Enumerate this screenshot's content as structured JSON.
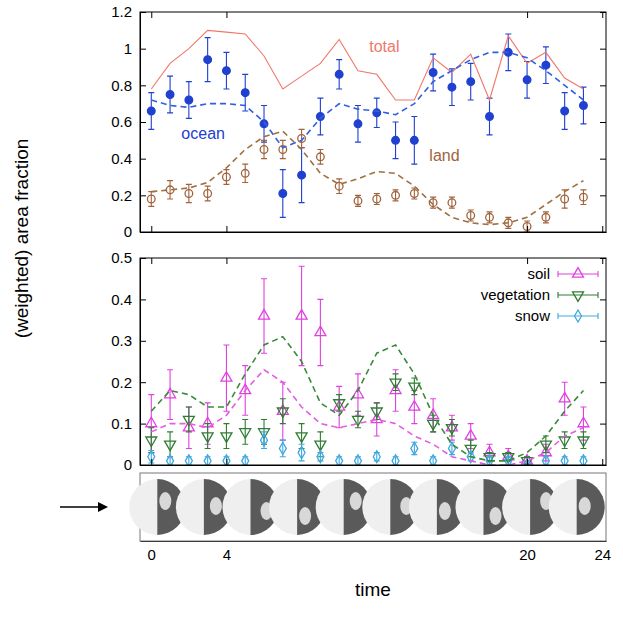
{
  "chart_data": [
    {
      "type": "scatter",
      "ylabel": "(weighted) area fraction",
      "x": [
        0,
        1,
        2,
        3,
        4,
        5,
        6,
        7,
        8,
        9,
        10,
        11,
        12,
        13,
        14,
        15,
        16,
        17,
        18,
        19,
        20,
        21,
        22,
        23
      ],
      "xlim": [
        -0.6,
        24.2
      ],
      "xticks": [
        0,
        4,
        20,
        24
      ],
      "ylim": [
        0,
        1.2
      ],
      "yticks": [
        0,
        0.2,
        0.4,
        0.6,
        0.8,
        1,
        1.2
      ],
      "tick_labels": "y",
      "grid": false,
      "series": [
        {
          "type": "scatter",
          "marker": "circle",
          "color": "#2040d0",
          "values": [
            0.66,
            0.75,
            0.72,
            0.94,
            0.88,
            0.76,
            0.59,
            0.21,
            0.31,
            0.63,
            0.86,
            0.59,
            0.65,
            0.5,
            0.5,
            0.87,
            0.79,
            0.82,
            0.63,
            0.98,
            0.83,
            0.91,
            0.66,
            0.69
          ],
          "errors": [
            0.1,
            0.1,
            0.1,
            0.12,
            0.1,
            0.1,
            0.1,
            0.13,
            0.15,
            0.1,
            0.08,
            0.1,
            0.08,
            0.1,
            0.13,
            0.1,
            0.1,
            0.1,
            0.1,
            0.1,
            0.1,
            0.1,
            0.1,
            0.1
          ]
        },
        {
          "type": "scatter",
          "marker": "open_circle",
          "color": "#a0633c",
          "values": [
            0.18,
            0.23,
            0.21,
            0.21,
            0.3,
            0.32,
            0.45,
            0.45,
            0.51,
            0.41,
            0.25,
            0.17,
            0.18,
            0.2,
            0.21,
            0.16,
            0.16,
            0.09,
            0.08,
            0.05,
            0.03,
            0.08,
            0.18,
            0.19
          ],
          "errors": [
            0.04,
            0.05,
            0.05,
            0.04,
            0.04,
            0.05,
            0.05,
            0.05,
            0.05,
            0.04,
            0.04,
            0.03,
            0.03,
            0.03,
            0.03,
            0.03,
            0.03,
            0.03,
            0.03,
            0.03,
            0.03,
            0.03,
            0.05,
            0.04
          ]
        },
        {
          "type": "line",
          "line_style": "solid",
          "color": "#f0786a",
          "values": [
            0.78,
            0.92,
            1.0,
            1.1,
            1.09,
            1.08,
            0.96,
            0.78,
            0.85,
            0.92,
            1.05,
            0.88,
            0.86,
            0.72,
            0.72,
            0.95,
            0.87,
            0.97,
            0.72,
            1.07,
            0.92,
            0.98,
            0.84,
            0.78
          ]
        },
        {
          "type": "line",
          "line_style": "dashed",
          "color": "#3060e0",
          "values": [
            0.72,
            0.69,
            0.68,
            0.7,
            0.7,
            0.69,
            0.6,
            0.46,
            0.5,
            0.62,
            0.7,
            0.67,
            0.66,
            0.64,
            0.7,
            0.82,
            0.88,
            0.94,
            0.98,
            0.98,
            0.95,
            0.88,
            0.8,
            0.72
          ]
        },
        {
          "type": "line",
          "line_style": "dashed",
          "color": "#a07040",
          "values": [
            0.22,
            0.23,
            0.24,
            0.27,
            0.35,
            0.45,
            0.52,
            0.55,
            0.45,
            0.32,
            0.26,
            0.29,
            0.33,
            0.32,
            0.25,
            0.15,
            0.08,
            0.05,
            0.04,
            0.05,
            0.08,
            0.15,
            0.22,
            0.28
          ]
        }
      ],
      "annotations": [
        {
          "text": "total",
          "x": 11.6,
          "y": 0.98,
          "color": "#f0786a"
        },
        {
          "text": "ocean",
          "x": 1.6,
          "y": 0.51,
          "color": "#2040d0"
        },
        {
          "text": "land",
          "x": 14.8,
          "y": 0.39,
          "color": "#a0633c"
        }
      ]
    },
    {
      "type": "scatter",
      "xlabel": "time",
      "x": [
        0,
        1,
        2,
        3,
        4,
        5,
        6,
        7,
        8,
        9,
        10,
        11,
        12,
        13,
        14,
        15,
        16,
        17,
        18,
        19,
        20,
        21,
        22,
        23
      ],
      "xlim": [
        -0.6,
        24.2
      ],
      "xticks": [
        0,
        4,
        20,
        24
      ],
      "ylim": [
        0,
        0.5
      ],
      "yticks": [
        0,
        0.1,
        0.2,
        0.3,
        0.4,
        0.5
      ],
      "grid": false,
      "legend": "top-right",
      "series": [
        {
          "name": "soil",
          "type": "scatter",
          "marker": "open_triangle_up",
          "color": "#e040e0",
          "values": [
            0.1,
            0.17,
            0.09,
            0.1,
            0.21,
            0.18,
            0.36,
            0.13,
            0.36,
            0.32,
            0.14,
            0.17,
            0.11,
            0.18,
            0.14,
            0.12,
            0.09,
            0.07,
            0.03,
            0.02,
            0.01,
            0.03,
            0.16,
            0.1
          ],
          "errors": [
            0.07,
            0.06,
            0.05,
            0.05,
            0.08,
            0.06,
            0.09,
            0.07,
            0.12,
            0.08,
            0.05,
            0.05,
            0.04,
            0.05,
            0.04,
            0.04,
            0.03,
            0.03,
            0.02,
            0.02,
            0.01,
            0.02,
            0.04,
            0.04
          ]
        },
        {
          "name": "vegetation",
          "type": "scatter",
          "marker": "open_triangle_down",
          "color": "#2f7d32",
          "values": [
            0.06,
            0.05,
            0.11,
            0.07,
            0.07,
            0.08,
            0.08,
            0.13,
            0.07,
            0.05,
            0.15,
            0.11,
            0.13,
            0.2,
            0.19,
            0.1,
            0.09,
            0.04,
            0.02,
            0.02,
            0.01,
            0.05,
            0.06,
            0.06
          ],
          "errors": [
            0.03,
            0.03,
            0.03,
            0.03,
            0.03,
            0.03,
            0.03,
            0.03,
            0.03,
            0.03,
            0.02,
            0.02,
            0.02,
            0.02,
            0.02,
            0.02,
            0.02,
            0.02,
            0.01,
            0.01,
            0.01,
            0.02,
            0.02,
            0.02
          ]
        },
        {
          "name": "snow",
          "type": "scatter",
          "marker": "open_diamond",
          "color": "#40a8e0",
          "values": [
            0.02,
            0.01,
            0.01,
            0.01,
            0.01,
            0.01,
            0.06,
            0.04,
            0.03,
            0.02,
            0.01,
            0.01,
            0.02,
            0.01,
            0.04,
            0.01,
            0.04,
            0.02,
            0.01,
            0.01,
            0,
            0.01,
            0.01,
            0.01
          ],
          "errors": [
            0.015,
            0.01,
            0.01,
            0.01,
            0.01,
            0.01,
            0.02,
            0.02,
            0.02,
            0.01,
            0.01,
            0.01,
            0.01,
            0.01,
            0.015,
            0.01,
            0.015,
            0.01,
            0.01,
            0.01,
            0.01,
            0.01,
            0.01,
            0.01
          ]
        },
        {
          "type": "line",
          "line_style": "dashed",
          "color": "#e060e0",
          "values": [
            0.08,
            0.1,
            0.1,
            0.09,
            0.12,
            0.18,
            0.23,
            0.2,
            0.14,
            0.1,
            0.09,
            0.1,
            0.11,
            0.1,
            0.07,
            0.05,
            0.02,
            0.01,
            0,
            0,
            0.01,
            0.03,
            0.07,
            0.09
          ]
        },
        {
          "type": "line",
          "line_style": "dashed",
          "color": "#3a8a3a",
          "values": [
            0.13,
            0.18,
            0.17,
            0.14,
            0.14,
            0.22,
            0.29,
            0.31,
            0.25,
            0.15,
            0.12,
            0.18,
            0.27,
            0.29,
            0.22,
            0.12,
            0.05,
            0.02,
            0.01,
            0.01,
            0.03,
            0.07,
            0.13,
            0.18
          ]
        }
      ]
    }
  ]
}
